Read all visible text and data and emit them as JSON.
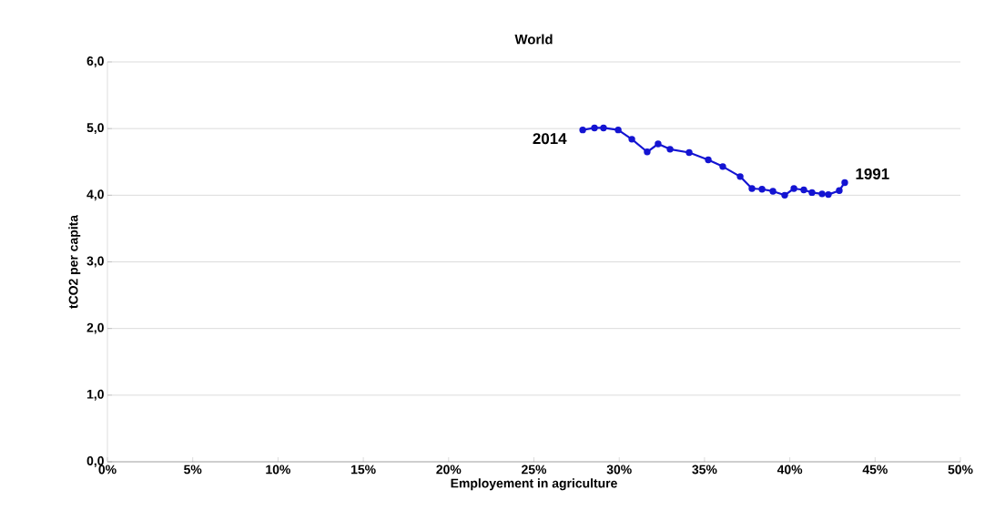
{
  "chart_data": {
    "type": "line",
    "title": "World",
    "xlabel": "Employement in agriculture",
    "ylabel": "tCO2 per capita",
    "x": [
      27.86,
      28.55,
      29.08,
      29.94,
      30.74,
      31.64,
      32.28,
      32.98,
      34.1,
      35.22,
      36.07,
      37.09,
      37.78,
      38.37,
      39.01,
      39.7,
      40.24,
      40.82,
      41.3,
      41.89,
      42.26,
      42.9,
      43.22
    ],
    "values": [
      4.98,
      5.01,
      5.01,
      4.98,
      4.84,
      4.65,
      4.77,
      4.69,
      4.64,
      4.53,
      4.43,
      4.28,
      4.1,
      4.09,
      4.06,
      4.0,
      4.1,
      4.08,
      4.04,
      4.02,
      4.01,
      4.07,
      4.19
    ],
    "color": "#1414d2",
    "marker": "circle",
    "line_style": "solid",
    "grid": "y",
    "xlim": [
      0,
      50
    ],
    "ylim": [
      0,
      6
    ],
    "xticks": [
      {
        "value": 0,
        "label": "0%"
      },
      {
        "value": 5,
        "label": "5%"
      },
      {
        "value": 10,
        "label": "10%"
      },
      {
        "value": 15,
        "label": "15%"
      },
      {
        "value": 20,
        "label": "20%"
      },
      {
        "value": 25,
        "label": "25%"
      },
      {
        "value": 30,
        "label": "30%"
      },
      {
        "value": 35,
        "label": "35%"
      },
      {
        "value": 40,
        "label": "40%"
      },
      {
        "value": 45,
        "label": "45%"
      },
      {
        "value": 50,
        "label": "50%"
      }
    ],
    "yticks": [
      {
        "value": 0,
        "label": "0,0"
      },
      {
        "value": 1,
        "label": "1,0"
      },
      {
        "value": 2,
        "label": "2,0"
      },
      {
        "value": 3,
        "label": "3,0"
      },
      {
        "value": 4,
        "label": "4,0"
      },
      {
        "value": 5,
        "label": "5,0"
      },
      {
        "value": 6,
        "label": "6,0"
      }
    ],
    "annotations": [
      {
        "text": "2014",
        "x": 27.86,
        "y": 4.98
      },
      {
        "text": "1991",
        "x": 43.22,
        "y": 4.19
      }
    ]
  }
}
